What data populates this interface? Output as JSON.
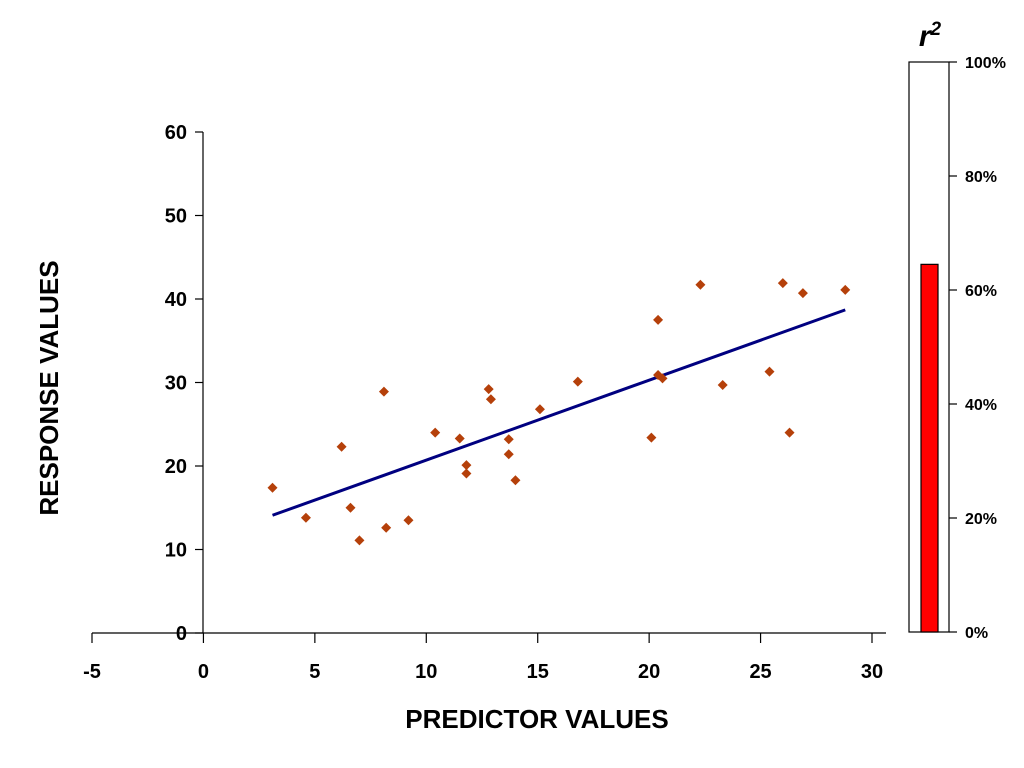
{
  "chart_data": [
    {
      "type": "scatter",
      "xlabel": "PREDICTOR VALUES",
      "ylabel": "RESPONSE VALUES",
      "xlim": [
        -5,
        30
      ],
      "ylim": [
        0,
        60
      ],
      "xticks": [
        "-5",
        "0",
        "5",
        "10",
        "15",
        "20",
        "25",
        "30"
      ],
      "yticks": [
        "0",
        "10",
        "20",
        "30",
        "40",
        "50",
        "60"
      ],
      "grid": false,
      "marker_color": "#B5400A",
      "line_color": "#000080",
      "series": [
        {
          "points": [
            [
              3.1,
              17.4
            ],
            [
              4.6,
              13.8
            ],
            [
              6.2,
              22.3
            ],
            [
              6.6,
              15.0
            ],
            [
              7.0,
              11.1
            ],
            [
              8.1,
              28.9
            ],
            [
              8.2,
              12.6
            ],
            [
              9.2,
              13.5
            ],
            [
              10.4,
              24.0
            ],
            [
              11.5,
              23.3
            ],
            [
              11.8,
              20.1
            ],
            [
              11.8,
              19.1
            ],
            [
              12.8,
              29.2
            ],
            [
              12.9,
              28.0
            ],
            [
              13.7,
              23.2
            ],
            [
              13.7,
              21.4
            ],
            [
              14.0,
              18.3
            ],
            [
              15.1,
              26.8
            ],
            [
              16.8,
              30.1
            ],
            [
              20.1,
              23.4
            ],
            [
              20.4,
              30.9
            ],
            [
              20.4,
              37.5
            ],
            [
              20.6,
              30.5
            ],
            [
              22.3,
              41.7
            ],
            [
              23.3,
              29.7
            ],
            [
              25.4,
              31.3
            ],
            [
              26.0,
              41.9
            ],
            [
              26.3,
              24.0
            ],
            [
              26.9,
              40.7
            ],
            [
              28.8,
              41.1
            ]
          ]
        }
      ],
      "trendline": {
        "x": [
          3.1,
          28.8
        ],
        "y": [
          14.1,
          38.7
        ]
      }
    },
    {
      "type": "bar",
      "title": "r",
      "title_superscript": "2",
      "ylim": [
        0,
        100
      ],
      "yticks": [
        "0%",
        "20%",
        "40%",
        "60%",
        "80%",
        "100%"
      ],
      "values": [
        64.5
      ],
      "bar_color": "#FF0000"
    }
  ]
}
